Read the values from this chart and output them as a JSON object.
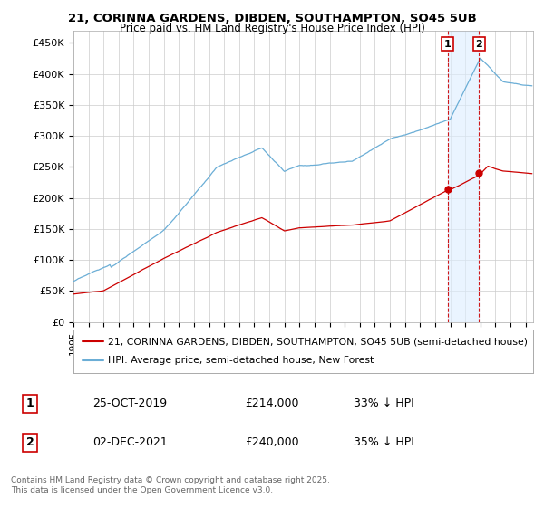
{
  "title1": "21, CORINNA GARDENS, DIBDEN, SOUTHAMPTON, SO45 5UB",
  "title2": "Price paid vs. HM Land Registry's House Price Index (HPI)",
  "bg_color": "#ffffff",
  "plot_bg_color": "#ffffff",
  "grid_color": "#cccccc",
  "hpi_color": "#6baed6",
  "price_color": "#cc0000",
  "dashed_color": "#cc0000",
  "shade_color": "#ddeeff",
  "legend_label_price": "21, CORINNA GARDENS, DIBDEN, SOUTHAMPTON, SO45 5UB (semi-detached house)",
  "legend_label_hpi": "HPI: Average price, semi-detached house, New Forest",
  "annotation1_date": "25-OCT-2019",
  "annotation1_price": "£214,000",
  "annotation1_hpi": "33% ↓ HPI",
  "annotation2_date": "02-DEC-2021",
  "annotation2_price": "£240,000",
  "annotation2_hpi": "35% ↓ HPI",
  "footnote": "Contains HM Land Registry data © Crown copyright and database right 2025.\nThis data is licensed under the Open Government Licence v3.0.",
  "ylim": [
    0,
    470000
  ],
  "yticks": [
    0,
    50000,
    100000,
    150000,
    200000,
    250000,
    300000,
    350000,
    400000,
    450000
  ],
  "ytick_labels": [
    "£0",
    "£50K",
    "£100K",
    "£150K",
    "£200K",
    "£250K",
    "£300K",
    "£350K",
    "£400K",
    "£450K"
  ],
  "marker1_x": 2019.82,
  "marker1_y": 214000,
  "marker2_x": 2021.92,
  "marker2_y": 240000,
  "xlim_left": 1995.0,
  "xlim_right": 2025.5
}
